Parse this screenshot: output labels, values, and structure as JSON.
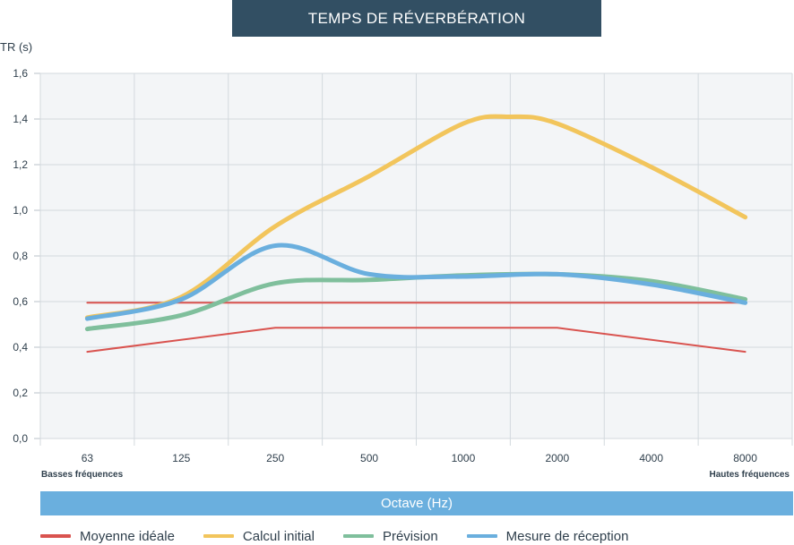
{
  "chart_data": {
    "type": "line",
    "title": "TEMPS DE RÉVERBÉRATION",
    "ylabel": "TR (s)",
    "xlabel": "Octave (Hz)",
    "categories": [
      "63",
      "125",
      "250",
      "500",
      "1000",
      "2000",
      "4000",
      "8000"
    ],
    "x_band_labels": {
      "left": "Basses fréquences",
      "right": "Hautes fréquences"
    },
    "ylim": [
      0,
      1.6
    ],
    "yticks": [
      "0,0",
      "0,2",
      "0,4",
      "0,6",
      "0,8",
      "1,0",
      "1,2",
      "1,4",
      "1,6"
    ],
    "grid": true,
    "legend_position": "bottom",
    "series": [
      {
        "name": "Moyenne idéale",
        "color": "#d9534f",
        "style": "thin",
        "x": [
          0,
          2,
          5,
          7
        ],
        "values": [
          0.38,
          0.485,
          0.485,
          0.38
        ]
      },
      {
        "name": "Moyenne idéale",
        "color": "#d9534f",
        "style": "thin",
        "legend": false,
        "x": [
          0,
          7
        ],
        "values": [
          0.595,
          0.595
        ]
      },
      {
        "name": "Calcul initial",
        "color": "#f2c55c",
        "style": "thick",
        "x": [
          0,
          1,
          2,
          3,
          4,
          4.5,
          5,
          6,
          7
        ],
        "values": [
          0.53,
          0.62,
          0.93,
          1.15,
          1.38,
          1.41,
          1.38,
          1.19,
          0.97
        ]
      },
      {
        "name": "Prévision",
        "color": "#7fbf9c",
        "style": "thick",
        "x": [
          0,
          1,
          2,
          3,
          4,
          5,
          6,
          7
        ],
        "values": [
          0.48,
          0.54,
          0.68,
          0.695,
          0.715,
          0.72,
          0.69,
          0.61
        ]
      },
      {
        "name": "Mesure de réception",
        "color": "#6aafde",
        "style": "thick",
        "x": [
          0,
          1,
          2,
          3,
          4,
          5,
          6,
          7
        ],
        "values": [
          0.525,
          0.61,
          0.845,
          0.72,
          0.71,
          0.72,
          0.675,
          0.595
        ]
      }
    ]
  }
}
